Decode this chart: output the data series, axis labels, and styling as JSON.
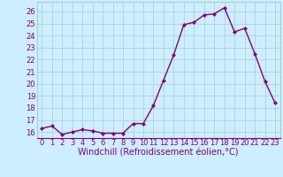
{
  "x": [
    0,
    1,
    2,
    3,
    4,
    5,
    6,
    7,
    8,
    9,
    10,
    11,
    12,
    13,
    14,
    15,
    16,
    17,
    18,
    19,
    20,
    21,
    22,
    23
  ],
  "y": [
    16.3,
    16.5,
    15.8,
    16.0,
    16.2,
    16.1,
    15.9,
    15.9,
    15.9,
    16.7,
    16.7,
    18.2,
    20.3,
    22.4,
    24.9,
    25.1,
    25.7,
    25.8,
    26.3,
    24.3,
    24.6,
    22.5,
    20.2,
    18.4
  ],
  "line_color": "#800080",
  "marker": "D",
  "marker_size": 2,
  "bg_color": "#cceeff",
  "grid_color": "#aacccc",
  "xlabel": "Windchill (Refroidissement éolien,°C)",
  "xlabel_fontsize": 7,
  "ylim": [
    15.5,
    26.8
  ],
  "xlim": [
    -0.5,
    23.5
  ],
  "yticks": [
    16,
    17,
    18,
    19,
    20,
    21,
    22,
    23,
    24,
    25,
    26
  ],
  "xticks": [
    0,
    1,
    2,
    3,
    4,
    5,
    6,
    7,
    8,
    9,
    10,
    11,
    12,
    13,
    14,
    15,
    16,
    17,
    18,
    19,
    20,
    21,
    22,
    23
  ],
  "tick_fontsize": 6,
  "tick_color": "#800080",
  "label_color": "#800080",
  "line_width": 1.0
}
